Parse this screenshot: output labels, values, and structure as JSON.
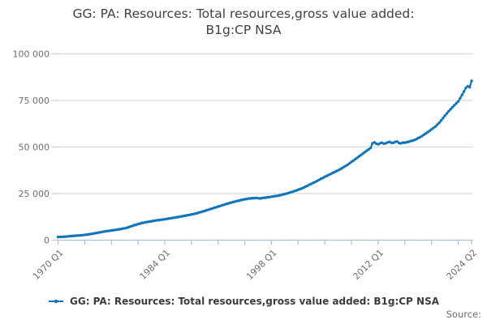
{
  "title": {
    "line1": "GG: PA: Resources: Total resources,gross value added:",
    "line2": "B1g:CP NSA"
  },
  "legend": {
    "label": "GG: PA: Resources: Total resources,gross value added: B1g:CP NSA",
    "marker_color": "#0f76bb"
  },
  "source_label": "Source:",
  "colors": {
    "line": "#0f76bb",
    "grid": "#d9d9d9",
    "x_axis": "#b0bfd8",
    "y_tick": "#c9c9c9",
    "axis_text": "#6d6d6d",
    "title_text": "#414042"
  },
  "chart_data": {
    "type": "line",
    "title": "GG: PA: Resources: Total resources,gross value added: B1g:CP NSA",
    "frequency": "quarterly",
    "x_start": "1970 Q1",
    "x_end": "2024 Q2",
    "ylim": [
      0,
      100000
    ],
    "grid": "horizontal",
    "legend_position": "bottom",
    "y_ticks": [
      {
        "value": 0,
        "label": "0"
      },
      {
        "value": 25000,
        "label": "25 000"
      },
      {
        "value": 50000,
        "label": "50 000"
      },
      {
        "value": 75000,
        "label": "75 000"
      },
      {
        "value": 100000,
        "label": "100 000"
      }
    ],
    "x_tick_labels": [
      "1970 Q1",
      "1984 Q1",
      "1998 Q1",
      "2012 Q1",
      "2024 Q2"
    ],
    "x_tick_quarters": [
      0,
      56,
      112,
      168,
      217
    ],
    "minor_tick_quarters": [
      0,
      14,
      28,
      42,
      56,
      70,
      84,
      98,
      112,
      126,
      140,
      154,
      168,
      182,
      196,
      210,
      217
    ],
    "series": [
      {
        "name": "GG: PA: Resources: Total resources,gross value added: B1g:CP NSA",
        "color": "#0f76bb",
        "values": [
          1700,
          1780,
          1790,
          1870,
          1920,
          1990,
          2120,
          2190,
          2310,
          2360,
          2470,
          2510,
          2620,
          2700,
          2880,
          2960,
          3120,
          3250,
          3470,
          3610,
          3830,
          3980,
          4230,
          4380,
          4620,
          4730,
          4920,
          5030,
          5230,
          5330,
          5520,
          5630,
          5830,
          5980,
          6230,
          6380,
          6640,
          6920,
          7340,
          7620,
          8040,
          8270,
          8640,
          8870,
          9240,
          9380,
          9640,
          9780,
          10040,
          10150,
          10390,
          10500,
          10740,
          10800,
          10990,
          11050,
          11240,
          11350,
          11590,
          11700,
          11940,
          12050,
          12290,
          12400,
          12640,
          12780,
          13040,
          13180,
          13440,
          13580,
          13840,
          13980,
          14240,
          14480,
          14840,
          15080,
          15440,
          15700,
          16090,
          16350,
          16740,
          17000,
          17390,
          17650,
          18040,
          18300,
          18690,
          18950,
          19340,
          19580,
          19940,
          20180,
          20540,
          20730,
          21040,
          21230,
          21540,
          21680,
          21940,
          22080,
          22340,
          22380,
          22540,
          22580,
          22700,
          22500,
          22400,
          22550,
          22730,
          22830,
          23050,
          23130,
          23340,
          23450,
          23690,
          23800,
          24040,
          24230,
          24540,
          24730,
          25040,
          25300,
          25690,
          25950,
          26340,
          26650,
          27090,
          27400,
          27840,
          28280,
          28840,
          29280,
          29840,
          30280,
          30840,
          31280,
          31840,
          32330,
          32940,
          33430,
          34040,
          34480,
          35040,
          35480,
          36040,
          36480,
          37040,
          37480,
          38040,
          38600,
          39290,
          39850,
          40540,
          41230,
          42040,
          42730,
          43540,
          44230,
          45040,
          45730,
          46540,
          47240,
          48040,
          48730,
          49500,
          52000,
          52500,
          51800,
          51500,
          52000,
          52300,
          51800,
          52000,
          52500,
          52800,
          52200,
          52300,
          52800,
          52900,
          52100,
          52000,
          52400,
          52300,
          52600,
          52800,
          53200,
          53400,
          53800,
          54200,
          54800,
          55300,
          55900,
          56600,
          57300,
          58000,
          58700,
          59500,
          60200,
          61000,
          62000,
          63000,
          64200,
          65500,
          66800,
          68000,
          69200,
          70300,
          71400,
          72500,
          73500,
          74500,
          76200,
          78000,
          79800,
          81800,
          82600,
          82100,
          85500
        ]
      }
    ]
  }
}
